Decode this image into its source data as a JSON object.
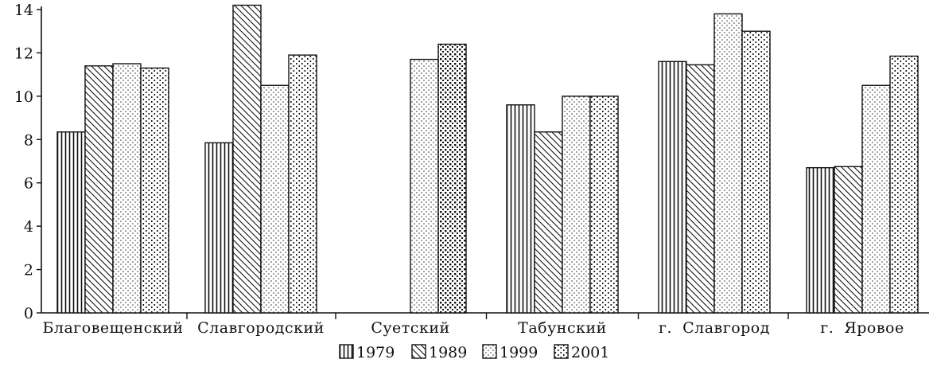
{
  "chart_data": {
    "type": "bar",
    "categories": [
      "Благовещенский",
      "Славгородский",
      "Суетский",
      "Табунский",
      "г.  Славгород",
      "г.  Яровое"
    ],
    "series": [
      {
        "name": "1979",
        "values": [
          8.35,
          7.85,
          null,
          9.6,
          11.6,
          6.7
        ],
        "pattern": "vertical-lines"
      },
      {
        "name": "1989",
        "values": [
          11.4,
          14.2,
          null,
          8.35,
          11.45,
          6.75
        ],
        "pattern": "diagonal-lines"
      },
      {
        "name": "1999",
        "values": [
          11.5,
          10.5,
          11.7,
          10.0,
          13.8,
          10.5
        ],
        "pattern": "dots-crosshatch"
      },
      {
        "name": "2001",
        "values": [
          11.3,
          11.9,
          12.4,
          10.0,
          13.0,
          11.85
        ],
        "pattern": "dotted-lines"
      }
    ],
    "ylim": [
      0,
      14
    ],
    "yticks": [
      "0",
      "2",
      "4",
      "6",
      "8",
      "10",
      "12",
      "14"
    ],
    "grid": false,
    "legend_placement": "bottom-center",
    "colors": {
      "ink": "#111111",
      "background": "#ffffff"
    }
  }
}
